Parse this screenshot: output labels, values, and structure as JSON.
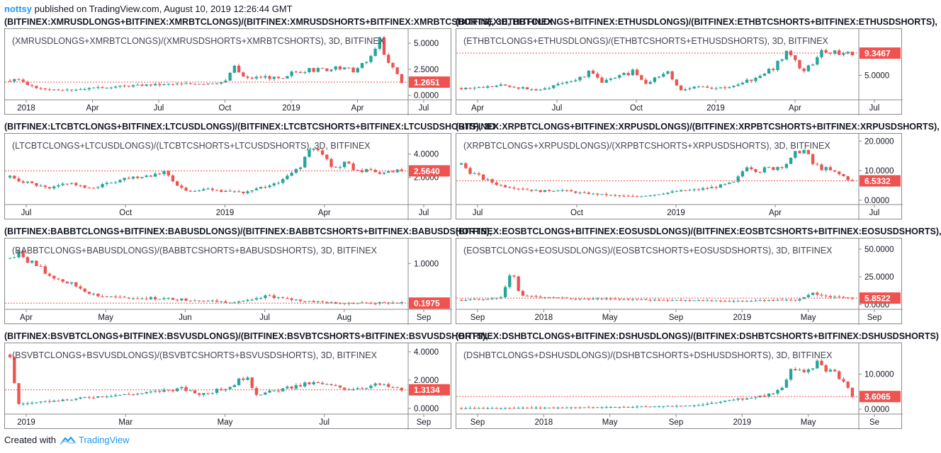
{
  "header": {
    "user": "nottsy",
    "text": " published on TradingView.com, August 10, 2019 12:26:44 GMT"
  },
  "footer": {
    "created": "Created with",
    "brand": "TradingView"
  },
  "colors": {
    "up": "#26a69a",
    "down": "#ef5350",
    "price_line": "#ef5350",
    "grid": "#e6e6e6",
    "axis_text": "#131722"
  },
  "chart_data": [
    {
      "type": "candlestick",
      "title": "(BITFINEX:XMRUSDLONGS+BITFINEX:XMRBTCLONGS)/(BITFINEX:XMRUSDSHORTS+BITFINEX:XMRBTCSHORTS), 3D, BITFINEX",
      "legend": "(XMRUSDLONGS+XMRBTCLONGS)/(XMRUSDSHORTS+XMRBTCSHORTS), 3D, BITFINEX",
      "last_price": "1.2651",
      "y_ticks": [
        "0.0000",
        "2.5000",
        "5.0000"
      ],
      "x_ticks": [
        "2018",
        "Apr",
        "Jul",
        "Oct",
        "2019",
        "Apr",
        "Jul"
      ],
      "series": [
        [
          0.0,
          1.4
        ],
        [
          0.02,
          1.6
        ],
        [
          0.04,
          1.0
        ],
        [
          0.08,
          0.6
        ],
        [
          0.15,
          0.5
        ],
        [
          0.25,
          0.8
        ],
        [
          0.35,
          1.0
        ],
        [
          0.45,
          1.1
        ],
        [
          0.52,
          1.2
        ],
        [
          0.55,
          1.3
        ],
        [
          0.57,
          2.8
        ],
        [
          0.6,
          1.6
        ],
        [
          0.65,
          1.8
        ],
        [
          0.7,
          1.5
        ],
        [
          0.72,
          2.2
        ],
        [
          0.75,
          2.4
        ],
        [
          0.8,
          2.5
        ],
        [
          0.84,
          2.6
        ],
        [
          0.88,
          2.4
        ],
        [
          0.92,
          3.5
        ],
        [
          0.94,
          5.7
        ],
        [
          0.96,
          3.2
        ],
        [
          0.98,
          2.6
        ],
        [
          1.0,
          1.3
        ]
      ],
      "ymin": -0.3,
      "ymax": 6.1
    },
    {
      "type": "candlestick",
      "title": "(BITFINEX:ETHBTCLONGS+BITFINEX:ETHUSDLONGS)/(BITFINEX:ETHBTCSHORTS+BITFINEX:ETHUSDSHORTS),",
      "legend": "(ETHBTCLONGS+ETHUSDLONGS)/(ETHBTCSHORTS+ETHUSDSHORTS), 3D, BITFINEX",
      "last_price": "9.3467",
      "y_ticks": [
        "5.0000"
      ],
      "x_ticks": [
        "Apr",
        "Jul",
        "Oct",
        "2019",
        "Apr",
        "Jul"
      ],
      "series": [
        [
          0.0,
          2.5
        ],
        [
          0.05,
          2.6
        ],
        [
          0.1,
          3.0
        ],
        [
          0.15,
          2.6
        ],
        [
          0.2,
          2.0
        ],
        [
          0.25,
          3.5
        ],
        [
          0.3,
          4.5
        ],
        [
          0.33,
          5.6
        ],
        [
          0.36,
          3.8
        ],
        [
          0.4,
          4.5
        ],
        [
          0.44,
          6.0
        ],
        [
          0.47,
          3.5
        ],
        [
          0.5,
          4.5
        ],
        [
          0.53,
          5.5
        ],
        [
          0.56,
          2.0
        ],
        [
          0.6,
          3.0
        ],
        [
          0.65,
          2.5
        ],
        [
          0.7,
          2.8
        ],
        [
          0.75,
          4.5
        ],
        [
          0.8,
          6.5
        ],
        [
          0.83,
          9.5
        ],
        [
          0.86,
          7.0
        ],
        [
          0.88,
          5.5
        ],
        [
          0.91,
          9.0
        ],
        [
          0.94,
          10.0
        ],
        [
          0.97,
          9.2
        ],
        [
          1.0,
          9.3
        ]
      ],
      "ymin": 0.5,
      "ymax": 13.5
    },
    {
      "type": "candlestick",
      "title": "(BITFINEX:LTCBTCLONGS+BITFINEX:LTCUSDLONGS)/(BITFINEX:LTCBTCSHORTS+BITFINEX:LTCUSDSHORTS), 3D",
      "legend": "(LTCBTCLONGS+LTCUSDLONGS)/(LTCBTCSHORTS+LTCUSDSHORTS), 3D, BITFINEX",
      "last_price": "2.5640",
      "y_ticks": [
        "2.0000",
        "4.0000"
      ],
      "x_ticks": [
        "Jul",
        "Oct",
        "2019",
        "Apr",
        "Jul"
      ],
      "series": [
        [
          0.0,
          2.0
        ],
        [
          0.05,
          1.5
        ],
        [
          0.1,
          1.0
        ],
        [
          0.15,
          1.6
        ],
        [
          0.2,
          1.0
        ],
        [
          0.25,
          1.5
        ],
        [
          0.3,
          2.0
        ],
        [
          0.35,
          2.2
        ],
        [
          0.4,
          2.5
        ],
        [
          0.42,
          1.5
        ],
        [
          0.45,
          0.8
        ],
        [
          0.5,
          1.0
        ],
        [
          0.55,
          0.8
        ],
        [
          0.6,
          0.7
        ],
        [
          0.65,
          1.2
        ],
        [
          0.7,
          1.8
        ],
        [
          0.74,
          3.0
        ],
        [
          0.77,
          4.5
        ],
        [
          0.8,
          3.8
        ],
        [
          0.83,
          2.8
        ],
        [
          0.86,
          3.2
        ],
        [
          0.89,
          2.6
        ],
        [
          0.93,
          2.4
        ],
        [
          0.96,
          2.3
        ],
        [
          1.0,
          2.56
        ]
      ],
      "ymin": -0.2,
      "ymax": 5.5
    },
    {
      "type": "candlestick",
      "title": "(BITFINEX:XRPBTCLONGS+BITFINEX:XRPUSDLONGS)/(BITFINEX:XRPBTCSHORTS+BITFINEX:XRPUSDSHORTS),",
      "legend": "(XRPBTCLONGS+XRPUSDLONGS)/(XRPBTCSHORTS+XRPUSDSHORTS), 3D, BITFINEX",
      "last_price": "6.5332",
      "y_ticks": [
        "0.0000",
        "10.0000",
        "20.0000"
      ],
      "x_ticks": [
        "Jul",
        "Oct",
        "2019",
        "Apr",
        "Jul"
      ],
      "series": [
        [
          0.0,
          12.0
        ],
        [
          0.03,
          9.0
        ],
        [
          0.06,
          7.0
        ],
        [
          0.1,
          5.0
        ],
        [
          0.15,
          4.0
        ],
        [
          0.2,
          3.0
        ],
        [
          0.25,
          3.5
        ],
        [
          0.3,
          2.5
        ],
        [
          0.35,
          2.0
        ],
        [
          0.4,
          1.5
        ],
        [
          0.45,
          1.2
        ],
        [
          0.5,
          2.0
        ],
        [
          0.55,
          3.0
        ],
        [
          0.6,
          3.5
        ],
        [
          0.65,
          4.5
        ],
        [
          0.7,
          6.0
        ],
        [
          0.73,
          12.0
        ],
        [
          0.76,
          10.0
        ],
        [
          0.8,
          11.0
        ],
        [
          0.84,
          13.0
        ],
        [
          0.87,
          18.0
        ],
        [
          0.9,
          12.0
        ],
        [
          0.94,
          10.0
        ],
        [
          0.97,
          8.5
        ],
        [
          1.0,
          6.5
        ]
      ],
      "ymin": -1.0,
      "ymax": 21.5
    },
    {
      "type": "candlestick",
      "title": "(BITFINEX:BABBTCLONGS+BITFINEX:BABUSDLONGS)/(BITFINEX:BABBTCSHORTS+BITFINEX:BABUSDSHORTS),",
      "legend": "(BABBTCLONGS+BABUSDLONGS)/(BABBTCSHORTS+BABUSDSHORTS), 3D, BITFINEX",
      "last_price": "0.1975",
      "y_ticks": [
        "1.0000"
      ],
      "x_ticks": [
        "Apr",
        "May",
        "Jun",
        "Jul",
        "Aug",
        "Sep"
      ],
      "series": [
        [
          0.0,
          1.1
        ],
        [
          0.03,
          1.2
        ],
        [
          0.06,
          1.0
        ],
        [
          0.09,
          0.8
        ],
        [
          0.12,
          0.7
        ],
        [
          0.15,
          0.6
        ],
        [
          0.18,
          0.5
        ],
        [
          0.22,
          0.35
        ],
        [
          0.28,
          0.3
        ],
        [
          0.35,
          0.3
        ],
        [
          0.42,
          0.28
        ],
        [
          0.5,
          0.25
        ],
        [
          0.55,
          0.22
        ],
        [
          0.62,
          0.25
        ],
        [
          0.66,
          0.35
        ],
        [
          0.7,
          0.28
        ],
        [
          0.75,
          0.25
        ],
        [
          0.82,
          0.2
        ],
        [
          0.9,
          0.2
        ],
        [
          1.0,
          0.2
        ]
      ],
      "ymin": 0.1,
      "ymax": 1.45
    },
    {
      "type": "candlestick",
      "title": "(BITFINEX:EOSBTCLONGS+BITFINEX:EOSUSDLONGS)/(BITFINEX:EOSBTCSHORTS+BITFINEX:EOSUSDSHORTS),",
      "legend": "(EOSBTCLONGS+EOSUSDLONGS)/(EOSBTCSHORTS+EOSUSDSHORTS), 3D, BITFINEX",
      "last_price": "5.8522",
      "y_ticks": [
        "0.0000",
        "25.0000",
        "50.0000"
      ],
      "x_ticks": [
        "Sep",
        "2018",
        "May",
        "Sep",
        "2019",
        "May",
        "Sep"
      ],
      "series": [
        [
          0.0,
          4.0
        ],
        [
          0.05,
          5.0
        ],
        [
          0.1,
          6.0
        ],
        [
          0.13,
          30.0
        ],
        [
          0.15,
          8.0
        ],
        [
          0.2,
          7.0
        ],
        [
          0.3,
          5.0
        ],
        [
          0.4,
          5.0
        ],
        [
          0.5,
          4.0
        ],
        [
          0.6,
          4.0
        ],
        [
          0.7,
          3.0
        ],
        [
          0.8,
          4.0
        ],
        [
          0.86,
          4.0
        ],
        [
          0.9,
          10.0
        ],
        [
          0.94,
          7.0
        ],
        [
          1.0,
          5.85
        ]
      ],
      "ymin": -3.0,
      "ymax": 57.0
    },
    {
      "type": "candlestick",
      "title": "(BITFINEX:BSVBTCLONGS+BITFINEX:BSVUSDLONGS)/(BITFINEX:BSVBTCSHORTS+BITFINEX:BSVUSDSHORTS),",
      "legend": "(BSVBTCLONGS+BSVUSDLONGS)/(BSVBTCSHORTS+BSVUSDSHORTS), 3D, BITFINEX",
      "last_price": "1.3134",
      "y_ticks": [
        "0.0000",
        "2.0000",
        "4.0000"
      ],
      "x_ticks": [
        "2019",
        "Mar",
        "May",
        "Jul",
        "Sep"
      ],
      "series": [
        [
          0.0,
          3.8
        ],
        [
          0.02,
          0.3
        ],
        [
          0.06,
          0.4
        ],
        [
          0.1,
          0.5
        ],
        [
          0.15,
          0.6
        ],
        [
          0.2,
          0.8
        ],
        [
          0.25,
          0.9
        ],
        [
          0.3,
          1.0
        ],
        [
          0.35,
          1.1
        ],
        [
          0.4,
          1.3
        ],
        [
          0.44,
          1.4
        ],
        [
          0.48,
          1.0
        ],
        [
          0.52,
          1.2
        ],
        [
          0.56,
          1.5
        ],
        [
          0.6,
          2.3
        ],
        [
          0.63,
          1.0
        ],
        [
          0.67,
          1.2
        ],
        [
          0.72,
          1.5
        ],
        [
          0.77,
          1.8
        ],
        [
          0.82,
          1.6
        ],
        [
          0.86,
          1.4
        ],
        [
          0.9,
          1.5
        ],
        [
          0.94,
          1.7
        ],
        [
          1.0,
          1.31
        ]
      ],
      "ymin": -0.3,
      "ymax": 4.4
    },
    {
      "type": "candlestick",
      "title": "(BITFINEX:DSHBTCLONGS+BITFINEX:DSHUSDLONGS)/(BITFINEX:DSHBTCSHORTS+BITFINEX:DSHUSDSHORTS)",
      "legend": "(DSHBTCLONGS+DSHUSDLONGS)/(DSHBTCSHORTS+DSHUSDSHORTS), 3D, BITFINEX",
      "last_price": "3.6065",
      "y_ticks": [
        "0.0000",
        "10.0000"
      ],
      "x_ticks": [
        "Sep",
        "2018",
        "May",
        "Sep",
        "2019",
        "May",
        "Se"
      ],
      "series": [
        [
          0.0,
          0.3
        ],
        [
          0.1,
          0.3
        ],
        [
          0.2,
          0.4
        ],
        [
          0.3,
          0.5
        ],
        [
          0.4,
          0.6
        ],
        [
          0.5,
          0.8
        ],
        [
          0.6,
          1.0
        ],
        [
          0.66,
          2.0
        ],
        [
          0.72,
          3.0
        ],
        [
          0.78,
          4.0
        ],
        [
          0.82,
          6.0
        ],
        [
          0.85,
          12.0
        ],
        [
          0.88,
          10.0
        ],
        [
          0.91,
          13.0
        ],
        [
          0.94,
          11.0
        ],
        [
          0.97,
          9.0
        ],
        [
          1.0,
          3.6
        ]
      ],
      "ymin": -1.0,
      "ymax": 18.0
    }
  ]
}
